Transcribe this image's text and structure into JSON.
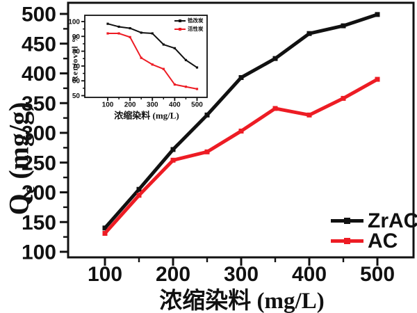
{
  "figure": {
    "background": "#ffffff",
    "axis_color": "#111111"
  },
  "chart_data": [
    {
      "id": "main",
      "type": "line",
      "title": "",
      "xlabel": "浓缩染料 (mg/L)",
      "ylabel": {
        "base": "Q",
        "sub": "e",
        "suffix": " (mg/g)"
      },
      "x": [
        100,
        150,
        200,
        250,
        300,
        350,
        400,
        450,
        500
      ],
      "series": [
        {
          "name": "ZrAC",
          "color": "#111111",
          "marker": "square",
          "values": [
            140,
            205,
            272,
            330,
            393,
            425,
            467,
            480,
            499
          ]
        },
        {
          "name": "AC",
          "color": "#ed1c24",
          "marker": "square",
          "values": [
            131,
            195,
            254,
            268,
            303,
            341,
            330,
            358,
            390
          ]
        }
      ],
      "xlim": [
        50,
        550
      ],
      "ylim": [
        95,
        505
      ],
      "xticks": [
        100,
        200,
        300,
        400,
        500
      ],
      "minor_xticks": [
        150,
        250,
        350,
        450
      ],
      "yticks": [
        100,
        150,
        200,
        250,
        300,
        350,
        400,
        450,
        500
      ],
      "minor_yticks": [
        125,
        175,
        225,
        275,
        325,
        375,
        425,
        475
      ],
      "grid": false,
      "legend_position": "lower-right"
    },
    {
      "id": "inset",
      "type": "line",
      "title": "",
      "xlabel": "浓缩染料 (mg/L)",
      "ylabel": "Removal %",
      "x": [
        100,
        150,
        200,
        250,
        300,
        350,
        400,
        450,
        500
      ],
      "series": [
        {
          "name": "锆改炭",
          "color": "#111111",
          "marker": "square",
          "values": [
            98.5,
            96.5,
            95.5,
            92.5,
            92,
            84.5,
            82,
            74,
            69
          ]
        },
        {
          "name": "活性炭",
          "color": "#ed1c24",
          "marker": "square",
          "values": [
            92,
            92,
            89.5,
            75.5,
            71,
            68,
            57.5,
            56,
            54.5
          ]
        }
      ],
      "xlim": [
        50,
        550
      ],
      "ylim": [
        50,
        104
      ],
      "xticks": [
        100,
        200,
        300,
        400,
        500
      ],
      "minor_xticks": [
        150,
        250,
        350,
        450
      ],
      "yticks": [
        50,
        60,
        70,
        80,
        90,
        100
      ],
      "minor_yticks": [
        55,
        65,
        75,
        85,
        95
      ],
      "grid": false,
      "legend_position": "upper-right"
    }
  ]
}
